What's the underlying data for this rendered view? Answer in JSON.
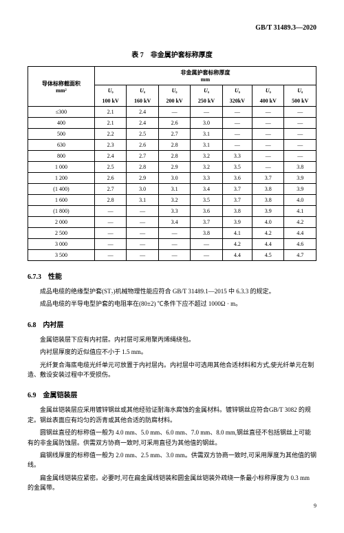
{
  "doc_code": "GB/T 31489.3—2020",
  "table_title": "表 7　非金属护套标称厚度",
  "header_area_label": "导体标称截面积",
  "header_area_unit": "mm²",
  "header_thickness_label": "非金属护套标称厚度",
  "header_thickness_unit": "mm",
  "voltage_cols": [
    {
      "u": "U₀",
      "kv": "100 kV"
    },
    {
      "u": "U₀",
      "kv": "160 kV"
    },
    {
      "u": "U₀",
      "kv": "200 kV"
    },
    {
      "u": "U₀",
      "kv": "250 kV"
    },
    {
      "u": "U₀",
      "kv": "320kV"
    },
    {
      "u": "U₀",
      "kv": "400 kV"
    },
    {
      "u": "U₀",
      "kv": "500 kV"
    }
  ],
  "rows": [
    {
      "area": "≤300",
      "vals": [
        "2.1",
        "2.4",
        "—",
        "—",
        "—",
        "—",
        "—"
      ]
    },
    {
      "area": "400",
      "vals": [
        "2.1",
        "2.4",
        "2.6",
        "3.0",
        "—",
        "—",
        "—"
      ]
    },
    {
      "area": "500",
      "vals": [
        "2.2",
        "2.5",
        "2.7",
        "3.1",
        "—",
        "—",
        "—"
      ]
    },
    {
      "area": "630",
      "vals": [
        "2.3",
        "2.6",
        "2.8",
        "3.1",
        "—",
        "—",
        "—"
      ]
    },
    {
      "area": "800",
      "vals": [
        "2.4",
        "2.7",
        "2.8",
        "3.2",
        "3.3",
        "—",
        "—"
      ]
    },
    {
      "area": "1 000",
      "vals": [
        "2.5",
        "2.8",
        "2.9",
        "3.2",
        "3.5",
        "—",
        "3.8"
      ]
    },
    {
      "area": "1 200",
      "vals": [
        "2.6",
        "2.9",
        "3.0",
        "3.3",
        "3.6",
        "3.7",
        "3.9"
      ]
    },
    {
      "area": "(1 400)",
      "vals": [
        "2.7",
        "3.0",
        "3.1",
        "3.4",
        "3.7",
        "3.8",
        "3.9"
      ]
    },
    {
      "area": "1 600",
      "vals": [
        "2.8",
        "3.1",
        "3.2",
        "3.5",
        "3.7",
        "3.8",
        "4.0"
      ]
    },
    {
      "area": "(1 800)",
      "vals": [
        "—",
        "—",
        "3.3",
        "3.6",
        "3.8",
        "3.9",
        "4.1"
      ]
    },
    {
      "area": "2 000",
      "vals": [
        "—",
        "—",
        "3.4",
        "3.7",
        "3.9",
        "4.0",
        "4.2"
      ]
    },
    {
      "area": "2 500",
      "vals": [
        "—",
        "—",
        "—",
        "3.8",
        "4.1",
        "4.2",
        "4.4"
      ]
    },
    {
      "area": "3 000",
      "vals": [
        "—",
        "—",
        "—",
        "—",
        "4.2",
        "4.4",
        "4.6"
      ]
    },
    {
      "area": "3 500",
      "vals": [
        "—",
        "—",
        "—",
        "—",
        "4.4",
        "4.5",
        "4.7"
      ]
    }
  ],
  "s673_title": "6.7.3　性能",
  "s673_p1": "成品电缆的绝缘型护套(ST₇)机械物理性能应符合 GB/T 31489.1—2015 中 6.3.3 的规定。",
  "s673_p2": "成品电缆的半导电型护套的电阻率在(80±2) ℃条件下应不超过 1000Ω · m。",
  "s68_title": "6.8　内衬层",
  "s68_p1": "金属铠装层下应有内衬层。内衬层可采用聚丙烯绳绕包。",
  "s68_p2": "内衬层厚度的近似值应不小于 1.5 mm。",
  "s68_p3": "光纤复合海底电缆光纤单元可放置于内衬层内。内衬层中可选用其他合适材料和方式,使光纤单元在制造、敷设安装过程中不受损伤。",
  "s69_title": "6.9　金属铠装层",
  "s69_p1": "金属丝铠装层应采用镀锌钢丝或其他经验证耐海水腐蚀的金属材料。镀锌钢丝应符合GB/T 3082 的规定。钢丝表面应有均匀的沥青或其他合适的防腐材料。",
  "s69_p2": "圆钢丝直径的标称值一般为 4.0 mm、5.0 mm、6.0 mm、7.0 mm、8.0 mm,钢丝直径不包括钢丝上可能有的非金属防蚀层。供需双方协商一致时,可采用直径为其他值的钢丝。",
  "s69_p3": "扁钢线厚度的标称值一般为 2.0 mm、2.5 mm、3.0 mm。供需双方协商一致时,可采用厚度为其他值的钢线。",
  "s69_p4": "扁金属线铠装应紧密。必要时,可在扁金属线铠装和圆金属丝铠装外疏绕一条最小标称厚度为 0.3 mm 的金属带。",
  "page_num": "9"
}
